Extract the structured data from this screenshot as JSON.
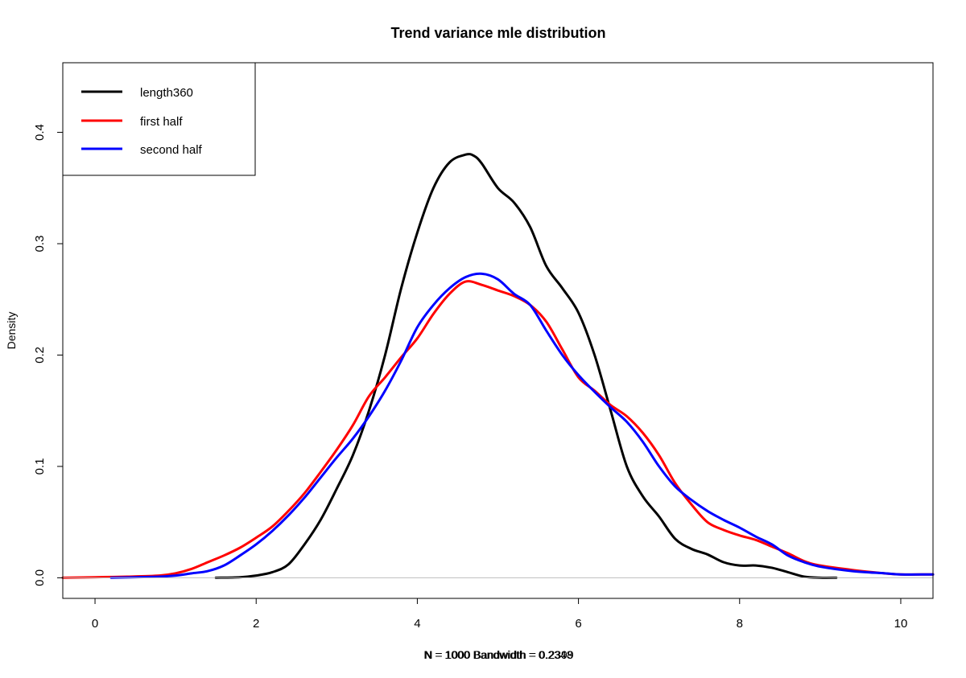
{
  "chart_data": {
    "type": "line",
    "title": "Trend variance mle distribution",
    "xlabel": "N = 1000   Bandwidth = 0.2399",
    "xlabel_overlap": "N = 1000   Bandwidth = 0.2348",
    "ylabel": "Density",
    "xlim": [
      -0.4,
      10.4
    ],
    "ylim": [
      -0.0185,
      0.4625
    ],
    "x_ticks": [
      0,
      2,
      4,
      6,
      8,
      10
    ],
    "y_ticks": [
      0.0,
      0.1,
      0.2,
      0.3,
      0.4
    ],
    "x_tick_labels": [
      "0",
      "2",
      "4",
      "6",
      "8",
      "10"
    ],
    "y_tick_labels": [
      "0.0",
      "0.1",
      "0.2",
      "0.3",
      "0.4"
    ],
    "grid": false,
    "baseline": 0,
    "legend": {
      "position": "top-left",
      "entries": [
        {
          "label": "length360",
          "color": "#000000"
        },
        {
          "label": "first half",
          "color": "#ff0000"
        },
        {
          "label": "second half",
          "color": "#0000ff"
        }
      ]
    },
    "series": [
      {
        "name": "length360",
        "color": "#000000",
        "x": [
          1.5,
          1.8,
          2.0,
          2.2,
          2.4,
          2.6,
          2.8,
          3.0,
          3.2,
          3.4,
          3.6,
          3.8,
          4.0,
          4.2,
          4.4,
          4.6,
          4.7,
          4.8,
          5.0,
          5.2,
          5.4,
          5.6,
          5.8,
          6.0,
          6.2,
          6.4,
          6.6,
          6.8,
          7.0,
          7.2,
          7.4,
          7.6,
          7.8,
          8.0,
          8.2,
          8.4,
          8.6,
          8.8,
          9.0,
          9.2
        ],
        "y": [
          0.0,
          0.0005,
          0.002,
          0.005,
          0.012,
          0.03,
          0.052,
          0.08,
          0.11,
          0.15,
          0.2,
          0.26,
          0.31,
          0.35,
          0.373,
          0.38,
          0.379,
          0.372,
          0.35,
          0.337,
          0.315,
          0.28,
          0.26,
          0.238,
          0.2,
          0.15,
          0.1,
          0.073,
          0.055,
          0.035,
          0.026,
          0.021,
          0.014,
          0.011,
          0.011,
          0.009,
          0.005,
          0.001,
          0.0,
          0.0
        ]
      },
      {
        "name": "first half",
        "color": "#ff0000",
        "x": [
          -0.4,
          0.0,
          0.4,
          0.8,
          1.0,
          1.2,
          1.4,
          1.6,
          1.8,
          2.0,
          2.2,
          2.4,
          2.6,
          2.8,
          3.0,
          3.2,
          3.4,
          3.6,
          3.8,
          4.0,
          4.2,
          4.4,
          4.6,
          4.8,
          5.0,
          5.2,
          5.4,
          5.6,
          5.8,
          6.0,
          6.2,
          6.4,
          6.6,
          6.8,
          7.0,
          7.2,
          7.4,
          7.6,
          7.8,
          8.0,
          8.2,
          8.4,
          8.6,
          8.8,
          9.0,
          9.4,
          9.8,
          10.0,
          10.4
        ],
        "y": [
          0.0,
          0.0005,
          0.001,
          0.002,
          0.004,
          0.008,
          0.014,
          0.02,
          0.027,
          0.036,
          0.046,
          0.06,
          0.076,
          0.095,
          0.115,
          0.137,
          0.163,
          0.18,
          0.198,
          0.215,
          0.237,
          0.255,
          0.266,
          0.263,
          0.258,
          0.253,
          0.245,
          0.23,
          0.205,
          0.18,
          0.168,
          0.155,
          0.145,
          0.13,
          0.11,
          0.085,
          0.066,
          0.05,
          0.043,
          0.038,
          0.034,
          0.028,
          0.022,
          0.015,
          0.011,
          0.007,
          0.004,
          0.003,
          0.003
        ]
      },
      {
        "name": "second half",
        "color": "#0000ff",
        "x": [
          0.2,
          0.5,
          0.8,
          1.0,
          1.2,
          1.4,
          1.6,
          1.8,
          2.0,
          2.2,
          2.4,
          2.6,
          2.8,
          3.0,
          3.2,
          3.4,
          3.6,
          3.8,
          4.0,
          4.2,
          4.4,
          4.6,
          4.8,
          5.0,
          5.2,
          5.4,
          5.6,
          5.8,
          6.0,
          6.2,
          6.4,
          6.6,
          6.8,
          7.0,
          7.2,
          7.4,
          7.6,
          7.8,
          8.0,
          8.2,
          8.4,
          8.6,
          8.8,
          9.0,
          9.4,
          9.8,
          10.0,
          10.4
        ],
        "y": [
          0.0,
          0.0005,
          0.001,
          0.002,
          0.004,
          0.006,
          0.011,
          0.02,
          0.03,
          0.042,
          0.056,
          0.072,
          0.09,
          0.108,
          0.125,
          0.145,
          0.168,
          0.195,
          0.225,
          0.245,
          0.26,
          0.27,
          0.273,
          0.268,
          0.255,
          0.245,
          0.222,
          0.2,
          0.182,
          0.167,
          0.153,
          0.14,
          0.122,
          0.1,
          0.082,
          0.07,
          0.06,
          0.052,
          0.045,
          0.037,
          0.03,
          0.02,
          0.014,
          0.01,
          0.006,
          0.004,
          0.003,
          0.003
        ]
      }
    ]
  }
}
